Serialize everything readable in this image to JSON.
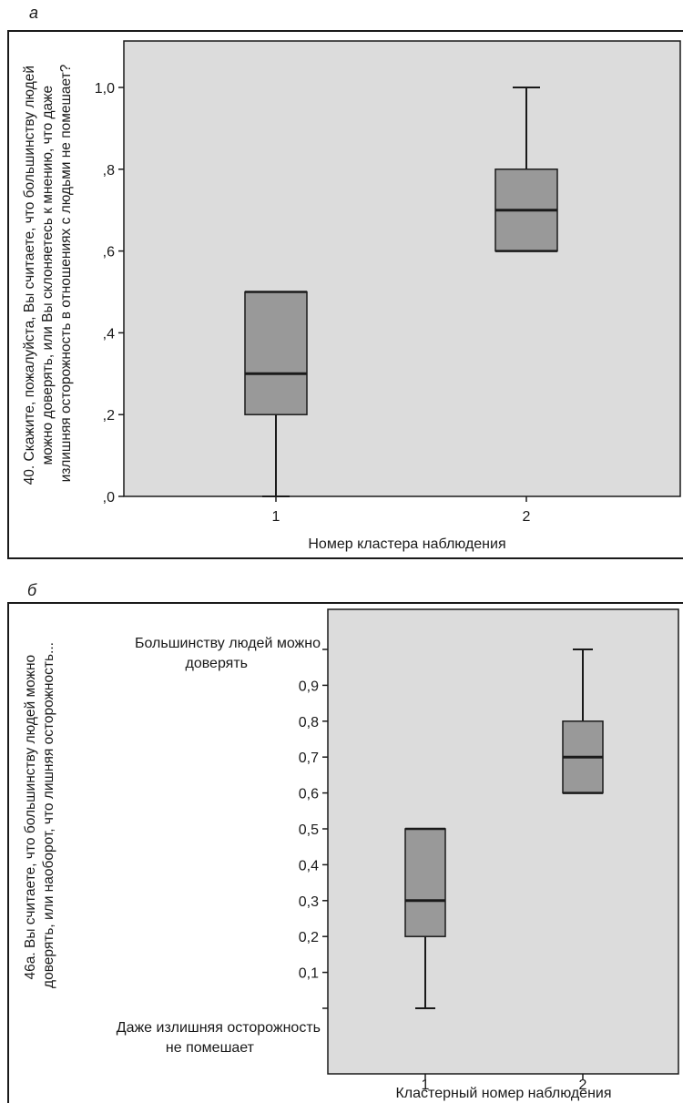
{
  "chart_data": [
    {
      "type": "box",
      "panel_label": "а",
      "xlabel": "Номер кластера наблюдения",
      "ylabel_lines": [
        "40. Скажите, пожалуйста, Вы считаете, что большинству людей",
        "можно доверять, или Вы склоняетесь к мнению, что даже",
        "излишняя осторожность в отношениях с людьми не помешает?"
      ],
      "categories": [
        "1",
        "2"
      ],
      "ytick_labels": [
        ",0",
        ",2",
        ",4",
        ",6",
        ",8",
        "1,0"
      ],
      "ytick_values": [
        0,
        0.2,
        0.4,
        0.6,
        0.8,
        1.0
      ],
      "ylim": [
        0,
        1.1
      ],
      "boxes": [
        {
          "category": "1",
          "whisker_low": 0.0,
          "q1": 0.2,
          "median": 0.3,
          "q3": 0.5,
          "whisker_high": 0.5
        },
        {
          "category": "2",
          "whisker_low": 0.6,
          "q1": 0.6,
          "median": 0.7,
          "q3": 0.8,
          "whisker_high": 1.0
        }
      ],
      "grid": false,
      "colors": {
        "plot_bg": "#dcdcdc",
        "box_fill": "#999999",
        "stroke": "#1a1a1a"
      }
    },
    {
      "type": "box",
      "panel_label": "б",
      "xlabel": "Кластерный номер наблюдения",
      "ylabel_lines": [
        "46а. Вы считаете, что большинству людей можно",
        "доверять, или наоборот, что лишняя осторожность..."
      ],
      "categories": [
        "1",
        "2"
      ],
      "ytick_labels": [
        "0,1",
        "0,2",
        "0,3",
        "0,4",
        "0,5",
        "0,6",
        "0,7",
        "0,8",
        "0,9"
      ],
      "ytick_values": [
        0.1,
        0.2,
        0.3,
        0.4,
        0.5,
        0.6,
        0.7,
        0.8,
        0.9
      ],
      "ytop_label_lines": [
        "Большинству людей можно",
        "доверять"
      ],
      "ybottom_label_lines": [
        "Даже излишняя осторожность",
        "не помешает"
      ],
      "ylim": [
        -0.15,
        1.15
      ],
      "boxes": [
        {
          "category": "1",
          "whisker_low": 0.0,
          "q1": 0.2,
          "median": 0.3,
          "q3": 0.5,
          "whisker_high": 0.5
        },
        {
          "category": "2",
          "whisker_low": 0.6,
          "q1": 0.6,
          "median": 0.7,
          "q3": 0.8,
          "whisker_high": 1.0
        }
      ],
      "grid": false,
      "colors": {
        "plot_bg": "#dcdcdc",
        "box_fill": "#999999",
        "stroke": "#1a1a1a"
      }
    }
  ]
}
